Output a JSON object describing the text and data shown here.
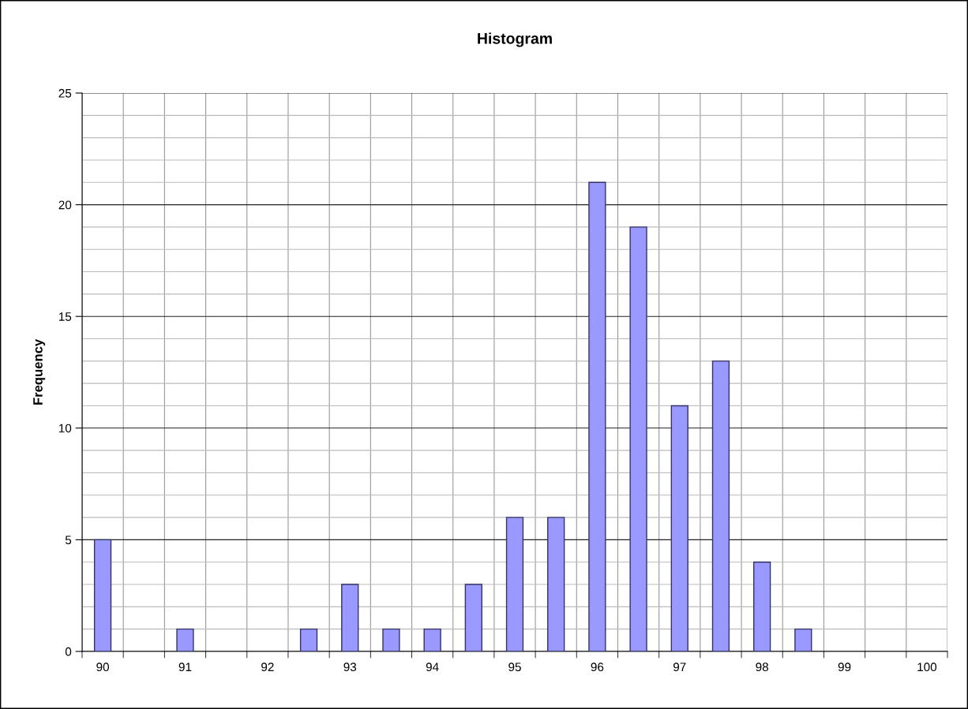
{
  "chart_data": {
    "type": "bar",
    "title": "Histogram",
    "ylabel": "Frequency",
    "categories": [
      "90",
      null,
      "91",
      null,
      "92",
      null,
      "93",
      null,
      "94",
      null,
      "95",
      null,
      "96",
      null,
      "97",
      null,
      "98",
      null,
      "99",
      null,
      "100"
    ],
    "values": [
      5,
      0,
      1,
      0,
      0,
      1,
      3,
      1,
      1,
      3,
      6,
      6,
      21,
      19,
      11,
      13,
      4,
      1,
      0,
      0,
      0
    ],
    "color": "#9999ff",
    "ylim": [
      0,
      25
    ],
    "yticks": [
      0,
      5,
      10,
      15,
      20,
      25
    ],
    "grid": true,
    "legend": false
  }
}
